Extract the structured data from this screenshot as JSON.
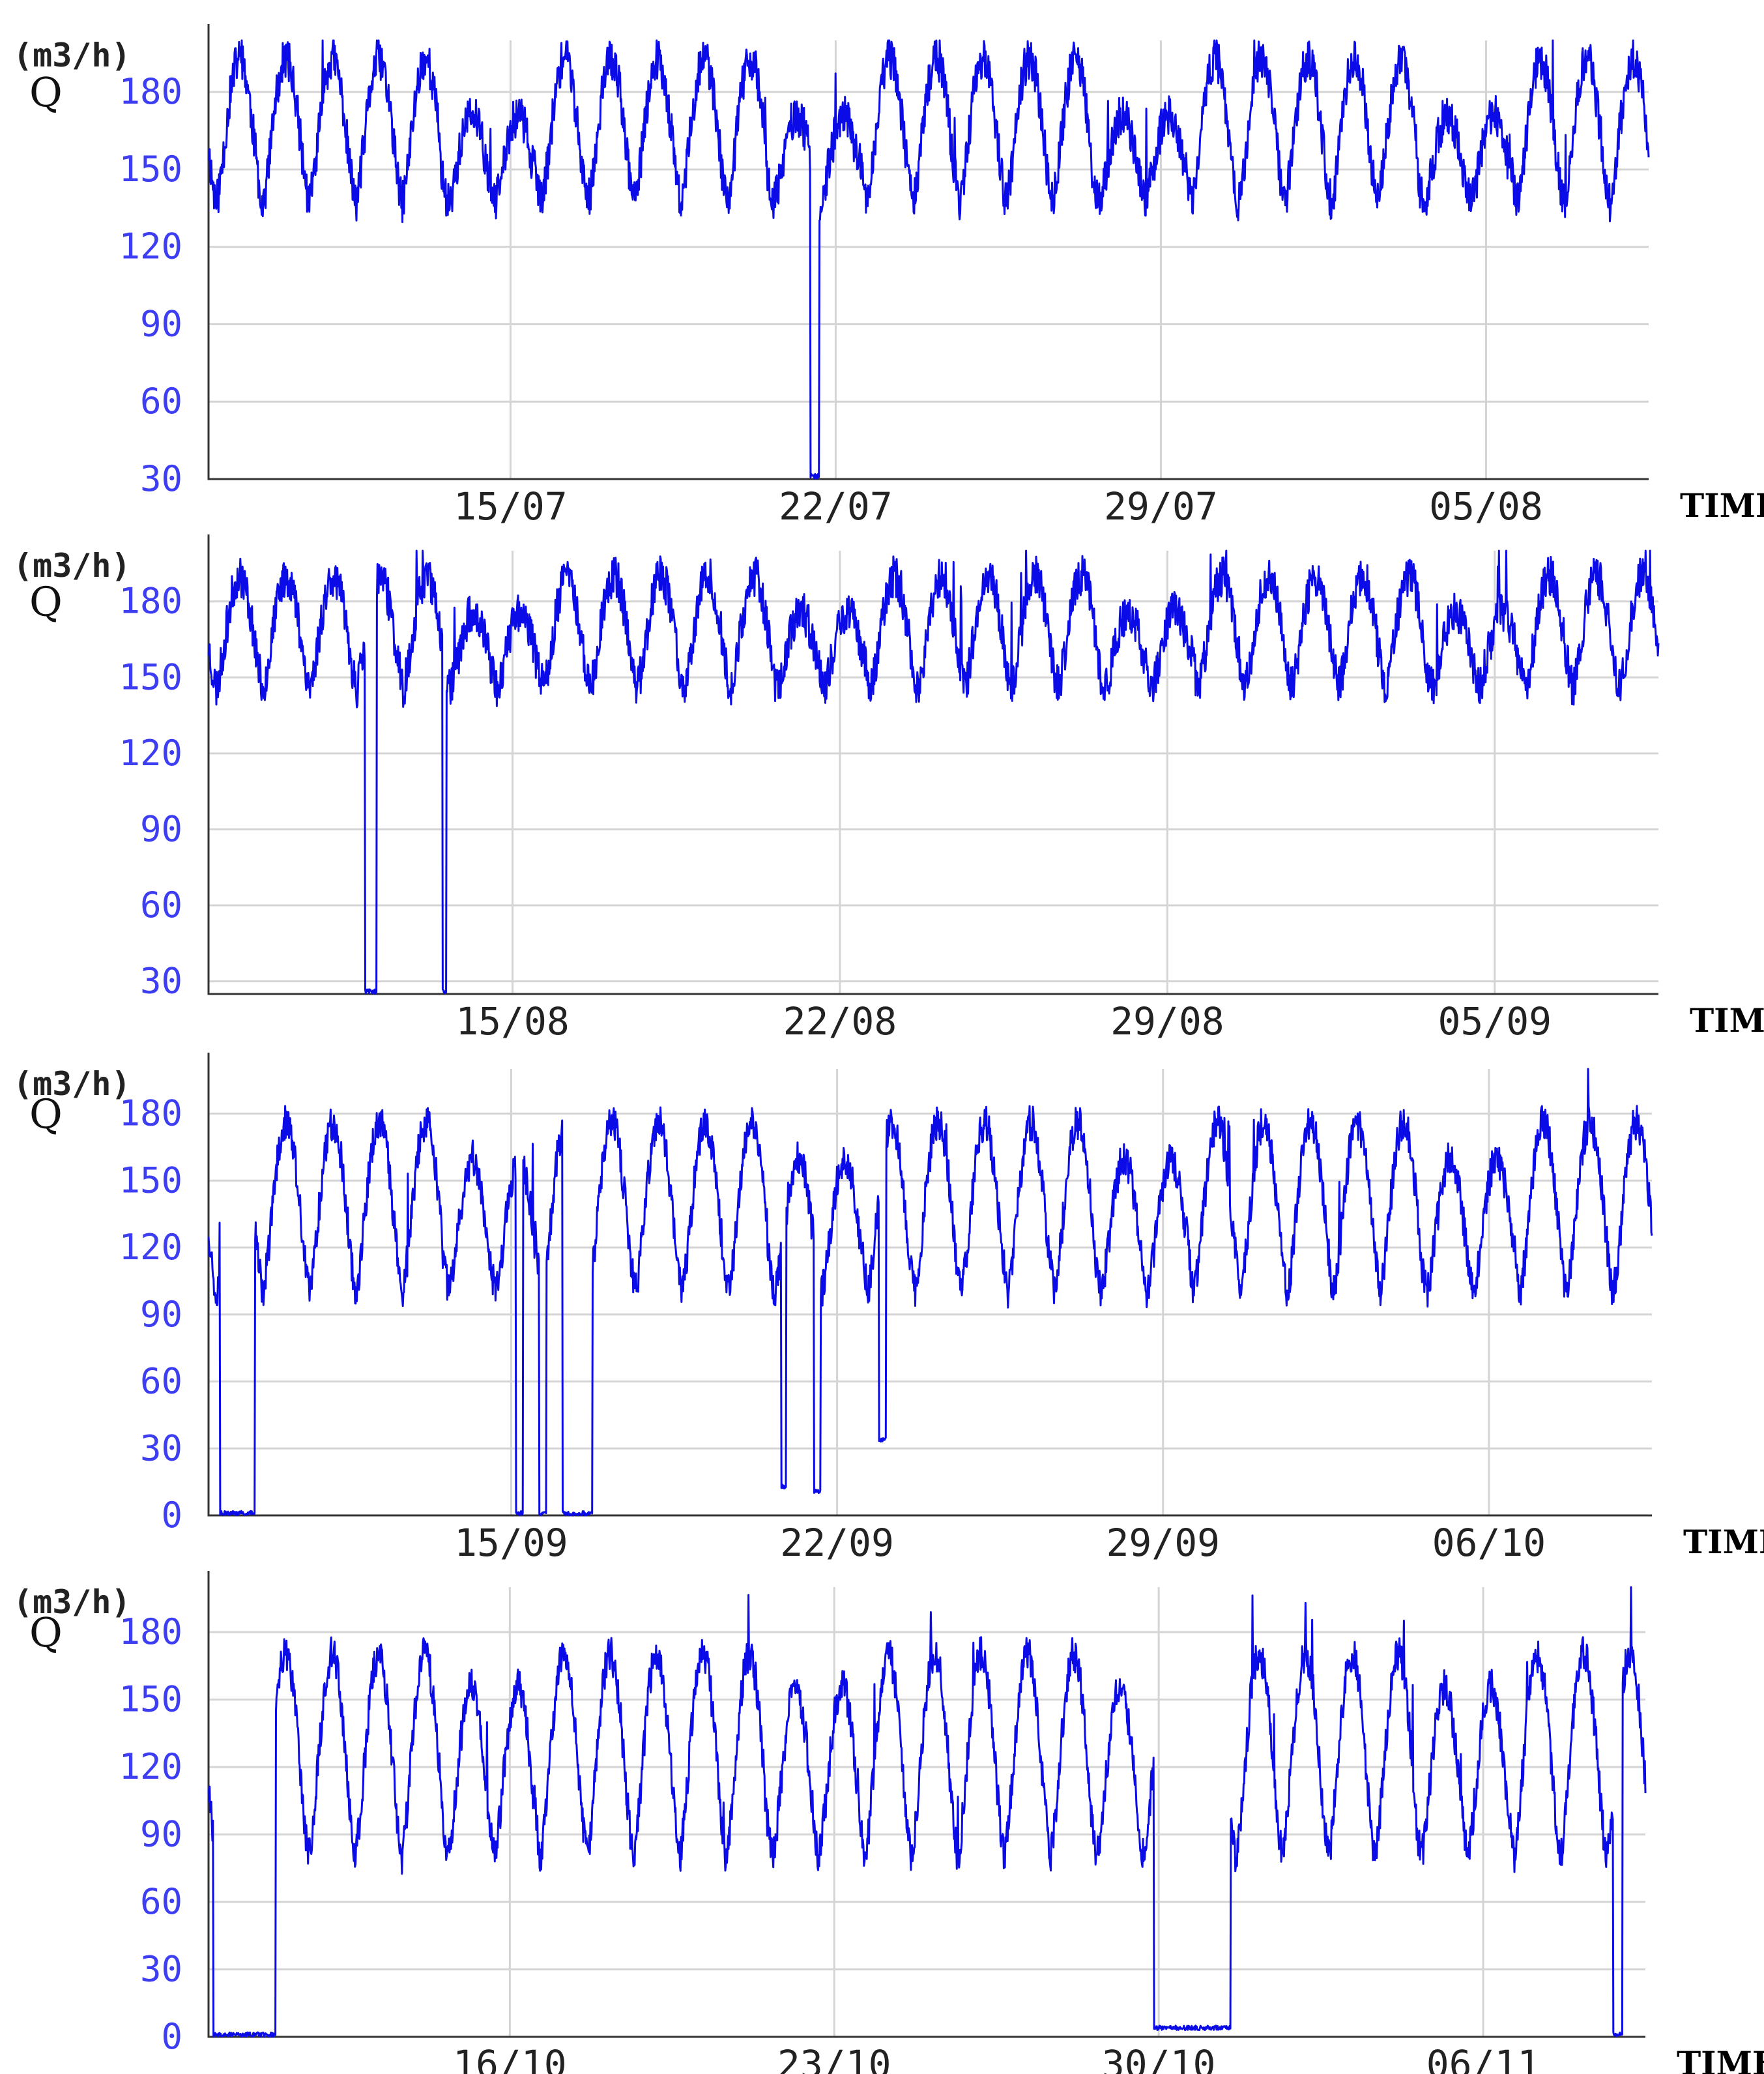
{
  "colors": {
    "series": "#0b0be8",
    "tick_y": "#3d3df2",
    "grid": "#d4d4d4"
  },
  "chart_data": [
    {
      "type": "line",
      "unit_label": "(m3/h)",
      "ylabel": "Q",
      "xlabel": "TIME",
      "ylim": [
        30,
        200
      ],
      "yticks": [
        30,
        60,
        90,
        120,
        150,
        180
      ],
      "xlim_days": [
        0,
        31
      ],
      "xticks": [
        {
          "day": 6.5,
          "label": "15/07"
        },
        {
          "day": 13.5,
          "label": "22/07"
        },
        {
          "day": 20.5,
          "label": "29/07"
        },
        {
          "day": 27.5,
          "label": "05/08"
        }
      ],
      "grid": true,
      "series": [
        {
          "style": {
            "base": 165,
            "amp": 28,
            "seed": 11,
            "weekend_dip": 22
          },
          "events": [
            {
              "start": 12.95,
              "end": 13.15,
              "value": 30
            }
          ]
        }
      ]
    },
    {
      "type": "line",
      "unit_label": "(m3/h)",
      "ylabel": "Q",
      "xlabel": "TIME",
      "ylim": [
        25,
        200
      ],
      "yticks": [
        30,
        60,
        90,
        120,
        150,
        180
      ],
      "xlim_days": [
        0,
        31
      ],
      "xticks": [
        {
          "day": 6.5,
          "label": "15/08"
        },
        {
          "day": 13.5,
          "label": "22/08"
        },
        {
          "day": 20.5,
          "label": "29/08"
        },
        {
          "day": 27.5,
          "label": "05/09"
        }
      ],
      "grid": true,
      "series": [
        {
          "style": {
            "base": 168,
            "amp": 22,
            "seed": 23,
            "weekend_dip": 14
          },
          "events": [
            {
              "start": 3.35,
              "end": 3.6,
              "value": 25
            },
            {
              "start": 5.0,
              "end": 5.08,
              "value": 25
            }
          ]
        }
      ]
    },
    {
      "type": "line",
      "unit_label": "(m3/h)",
      "ylabel": "Q",
      "xlabel": "TIME",
      "ylim": [
        0,
        200
      ],
      "yticks": [
        0,
        30,
        60,
        90,
        120,
        150,
        180
      ],
      "xlim_days": [
        0,
        31
      ],
      "xticks": [
        {
          "day": 6.5,
          "label": "15/09"
        },
        {
          "day": 13.5,
          "label": "22/09"
        },
        {
          "day": 20.5,
          "label": "29/09"
        },
        {
          "day": 27.5,
          "label": "06/10"
        }
      ],
      "grid": true,
      "series": [
        {
          "style": {
            "base": 138,
            "amp": 38,
            "seed": 37,
            "weekend_dip": 16
          },
          "events": [
            {
              "start": 0.25,
              "end": 1.0,
              "value": 0
            },
            {
              "start": 6.6,
              "end": 6.75,
              "value": 0
            },
            {
              "start": 7.1,
              "end": 7.25,
              "value": 0
            },
            {
              "start": 7.6,
              "end": 8.25,
              "value": 0
            },
            {
              "start": 12.3,
              "end": 12.4,
              "value": 12
            },
            {
              "start": 13.0,
              "end": 13.15,
              "value": 10
            },
            {
              "start": 14.4,
              "end": 14.55,
              "value": 33
            }
          ]
        }
      ]
    },
    {
      "type": "line",
      "unit_label": "(m3/h)",
      "ylabel": "Q",
      "xlabel": "TIME",
      "ylim": [
        0,
        200
      ],
      "yticks": [
        0,
        30,
        60,
        90,
        120,
        150,
        180
      ],
      "xlim_days": [
        0,
        31
      ],
      "xticks": [
        {
          "day": 6.5,
          "label": "16/10"
        },
        {
          "day": 13.5,
          "label": "23/10"
        },
        {
          "day": 20.5,
          "label": "30/10"
        },
        {
          "day": 27.5,
          "label": "06/11"
        }
      ],
      "grid": true,
      "series": [
        {
          "style": {
            "base": 125,
            "amp": 45,
            "seed": 53,
            "weekend_dip": 14
          },
          "events": [
            {
              "start": 0.1,
              "end": 1.45,
              "value": 0
            },
            {
              "start": 20.4,
              "end": 22.05,
              "value": 3
            },
            {
              "start": 30.3,
              "end": 30.5,
              "value": 0
            }
          ]
        }
      ]
    }
  ]
}
